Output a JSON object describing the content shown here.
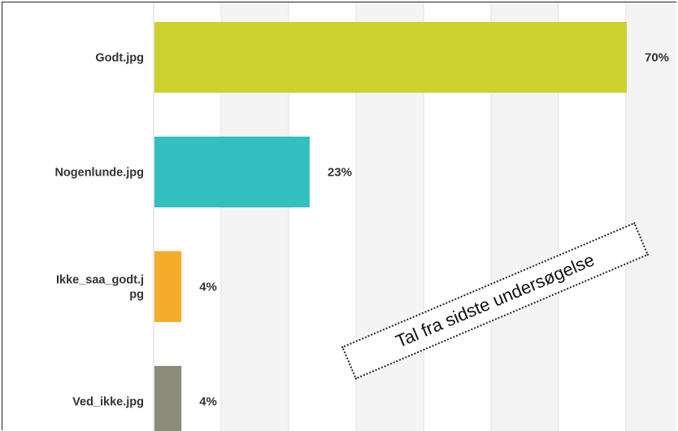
{
  "chart_data": {
    "type": "bar",
    "orientation": "horizontal",
    "categories": [
      "Godt.jpg",
      "Nogenlunde.jpg",
      "Ikke_saa_godt.jpg",
      "Ved_ikke.jpg"
    ],
    "category_label_lines": [
      [
        "Godt.jpg"
      ],
      [
        "Nogenlunde.jpg"
      ],
      [
        "Ikke_saa_godt.j",
        "pg"
      ],
      [
        "Ved_ikke.jpg"
      ]
    ],
    "values": [
      70,
      23,
      4,
      4
    ],
    "value_labels": [
      "70%",
      "23%",
      "4%",
      "4%"
    ],
    "colors": [
      "#cdd22f",
      "#33bfbf",
      "#f7ab2a",
      "#8c8c7c"
    ],
    "xlim": [
      0,
      70
    ],
    "grid": true,
    "gridline_color": "#e2e2e2",
    "background_stripe_color": "#f4f4f4"
  },
  "annotation": {
    "text": "Tal fra sidste undersøgelse"
  }
}
